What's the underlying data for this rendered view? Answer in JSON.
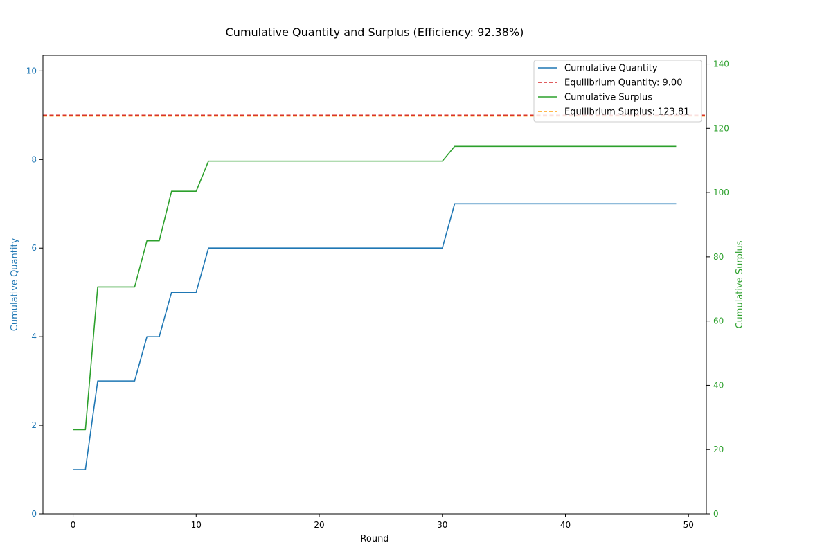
{
  "chart_data": {
    "type": "line",
    "title": "Cumulative Quantity and Surplus (Efficiency: 92.38%)",
    "xlabel": "Round",
    "ylabel_left": "Cumulative Quantity",
    "ylabel_right": "Cumulative Surplus",
    "xlim": [
      -2.45,
      51.45
    ],
    "ylim_left": [
      0,
      10.35
    ],
    "ylim_right": [
      0,
      142.7
    ],
    "xticks": [
      0,
      10,
      20,
      30,
      40,
      50
    ],
    "yticks_left": [
      0,
      2,
      4,
      6,
      8,
      10
    ],
    "yticks_right": [
      0,
      20,
      40,
      60,
      80,
      100,
      120,
      140
    ],
    "grid": false,
    "legend_position": "top-right",
    "colors": {
      "quantity": "#1f77b4",
      "eq_quantity": "#d62728",
      "surplus": "#2ca02c",
      "eq_surplus": "#ff9f0e",
      "axis": "#000000"
    },
    "x": [
      0,
      1,
      2,
      3,
      4,
      5,
      6,
      7,
      8,
      9,
      10,
      11,
      12,
      13,
      14,
      15,
      16,
      17,
      18,
      19,
      20,
      21,
      22,
      23,
      24,
      25,
      26,
      27,
      28,
      29,
      30,
      31,
      32,
      33,
      34,
      35,
      36,
      37,
      38,
      39,
      40,
      41,
      42,
      43,
      44,
      45,
      46,
      47,
      48,
      49
    ],
    "series": [
      {
        "name": "Cumulative Quantity",
        "axis": "left",
        "style": "solid",
        "values": [
          1,
          1,
          3,
          3,
          3,
          3,
          4,
          4,
          5,
          5,
          5,
          6,
          6,
          6,
          6,
          6,
          6,
          6,
          6,
          6,
          6,
          6,
          6,
          6,
          6,
          6,
          6,
          6,
          6,
          6,
          6,
          7,
          7,
          7,
          7,
          7,
          7,
          7,
          7,
          7,
          7,
          7,
          7,
          7,
          7,
          7,
          7,
          7,
          7,
          7
        ]
      },
      {
        "name": "Cumulative Surplus",
        "axis": "right",
        "style": "solid",
        "values": [
          26.2,
          26.2,
          70.6,
          70.6,
          70.6,
          70.6,
          85.0,
          85.0,
          100.4,
          100.4,
          100.4,
          109.8,
          109.8,
          109.8,
          109.8,
          109.8,
          109.8,
          109.8,
          109.8,
          109.8,
          109.8,
          109.8,
          109.8,
          109.8,
          109.8,
          109.8,
          109.8,
          109.8,
          109.8,
          109.8,
          109.8,
          114.4,
          114.4,
          114.4,
          114.4,
          114.4,
          114.4,
          114.4,
          114.4,
          114.4,
          114.4,
          114.4,
          114.4,
          114.4,
          114.4,
          114.4,
          114.4,
          114.4,
          114.4,
          114.4
        ]
      }
    ],
    "reference_lines": [
      {
        "name": "Equilibrium Quantity: 9.00",
        "axis": "left",
        "value": 9.0,
        "style": "dashed"
      },
      {
        "name": "Equilibrium Surplus: 123.81",
        "axis": "right",
        "value": 123.81,
        "style": "dashed"
      }
    ],
    "legend": [
      "Cumulative Quantity",
      "Equilibrium Quantity: 9.00",
      "Cumulative Surplus",
      "Equilibrium Surplus: 123.81"
    ]
  }
}
